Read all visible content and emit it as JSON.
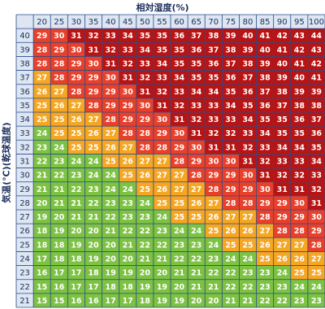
{
  "chart_data": {
    "type": "heatmap",
    "xlabel": "相対湿度(%)",
    "ylabel": "気温(℃)(乾球温度)",
    "x": [
      "20",
      "25",
      "30",
      "35",
      "40",
      "45",
      "50",
      "55",
      "60",
      "65",
      "70",
      "75",
      "80",
      "85",
      "90",
      "95",
      "100"
    ],
    "y": [
      "40",
      "39",
      "38",
      "37",
      "36",
      "35",
      "34",
      "33",
      "32",
      "31",
      "30",
      "29",
      "28",
      "27",
      "26",
      "25",
      "24",
      "23",
      "22",
      "21"
    ],
    "values": [
      [
        29,
        30,
        31,
        32,
        33,
        34,
        35,
        35,
        36,
        37,
        38,
        39,
        40,
        41,
        42,
        43,
        44
      ],
      [
        28,
        29,
        30,
        31,
        32,
        33,
        34,
        35,
        35,
        36,
        37,
        38,
        39,
        40,
        41,
        42,
        43
      ],
      [
        28,
        28,
        29,
        30,
        31,
        32,
        33,
        34,
        35,
        35,
        36,
        37,
        38,
        39,
        40,
        41,
        42
      ],
      [
        27,
        28,
        29,
        29,
        30,
        31,
        32,
        33,
        34,
        35,
        35,
        36,
        37,
        38,
        39,
        40,
        41
      ],
      [
        26,
        27,
        28,
        29,
        29,
        30,
        31,
        32,
        33,
        34,
        34,
        35,
        36,
        37,
        38,
        39,
        39
      ],
      [
        25,
        26,
        27,
        28,
        29,
        29,
        30,
        31,
        32,
        33,
        33,
        34,
        35,
        36,
        37,
        38,
        38
      ],
      [
        25,
        25,
        26,
        27,
        28,
        29,
        29,
        30,
        31,
        32,
        33,
        33,
        34,
        35,
        35,
        36,
        37
      ],
      [
        24,
        25,
        25,
        26,
        27,
        28,
        28,
        29,
        30,
        31,
        32,
        32,
        33,
        34,
        35,
        35,
        36
      ],
      [
        23,
        24,
        25,
        25,
        26,
        27,
        28,
        28,
        29,
        30,
        31,
        31,
        32,
        33,
        34,
        34,
        35
      ],
      [
        22,
        23,
        24,
        24,
        25,
        26,
        27,
        27,
        28,
        29,
        30,
        30,
        31,
        32,
        33,
        33,
        34
      ],
      [
        21,
        22,
        23,
        24,
        24,
        25,
        26,
        27,
        27,
        28,
        29,
        29,
        30,
        31,
        32,
        32,
        33
      ],
      [
        21,
        21,
        22,
        23,
        24,
        24,
        25,
        26,
        27,
        27,
        28,
        29,
        29,
        30,
        31,
        31,
        32
      ],
      [
        20,
        21,
        21,
        22,
        23,
        23,
        24,
        25,
        25,
        26,
        27,
        28,
        28,
        29,
        29,
        30,
        31
      ],
      [
        19,
        20,
        21,
        21,
        22,
        23,
        23,
        24,
        25,
        25,
        26,
        27,
        27,
        28,
        29,
        29,
        30
      ],
      [
        18,
        19,
        20,
        20,
        21,
        22,
        22,
        23,
        24,
        24,
        25,
        26,
        26,
        27,
        28,
        28,
        29
      ],
      [
        18,
        18,
        19,
        20,
        20,
        21,
        22,
        22,
        23,
        23,
        24,
        25,
        25,
        26,
        27,
        27,
        28
      ],
      [
        17,
        18,
        18,
        19,
        20,
        20,
        21,
        21,
        22,
        22,
        23,
        24,
        24,
        25,
        26,
        26,
        27
      ],
      [
        16,
        17,
        17,
        18,
        19,
        19,
        20,
        20,
        21,
        21,
        22,
        22,
        23,
        23,
        24,
        25,
        25
      ],
      [
        15,
        16,
        17,
        17,
        18,
        18,
        19,
        19,
        20,
        21,
        21,
        22,
        22,
        23,
        23,
        24,
        24
      ],
      [
        15,
        15,
        16,
        16,
        17,
        17,
        18,
        19,
        19,
        20,
        20,
        21,
        21,
        22,
        22,
        23,
        23
      ]
    ],
    "color_scale": [
      {
        "max": 24,
        "color": "#7dc242"
      },
      {
        "max": 27,
        "color": "#f5a623"
      },
      {
        "max": 30,
        "color": "#e8402a"
      },
      {
        "max": 99,
        "color": "#b81414"
      }
    ],
    "header_bg": "#dde6f2",
    "grid_color": "#2a4a8a",
    "header_text_color": "#1a2e5a",
    "cell_text_color": "#ffffff",
    "grid": true
  }
}
